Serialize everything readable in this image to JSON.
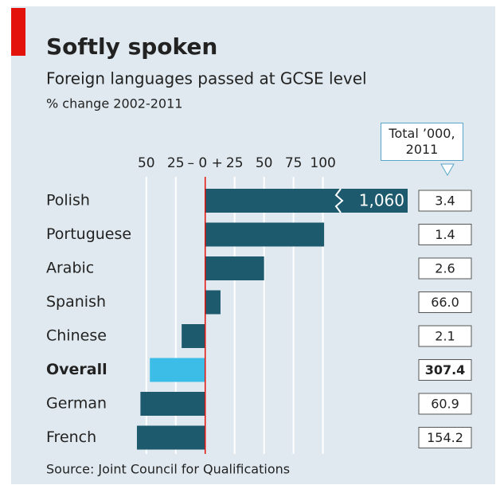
{
  "chart_data": {
    "type": "bar",
    "title": "Softly spoken",
    "subtitle": "Foreign languages passed at GCSE level",
    "axis_label": "% change 2002-2011",
    "source": "Source: Joint Council for Qualifications",
    "categories": [
      "Polish",
      "Portuguese",
      "Arabic",
      "Spanish",
      "Chinese",
      "Overall",
      "German",
      "French"
    ],
    "values": [
      1060,
      101,
      50,
      13,
      -20,
      -47,
      -55,
      -58
    ],
    "value_labels": [
      "1,060",
      null,
      null,
      null,
      null,
      null,
      null,
      null
    ],
    "color": "#1d5a6e",
    "colors": [
      "#1d5a6e",
      "#1d5a6e",
      "#1d5a6e",
      "#1d5a6e",
      "#1d5a6e",
      "#3bbde8",
      "#1d5a6e",
      "#1d5a6e"
    ],
    "xlim": [
      -60,
      105
    ],
    "xticks": [
      {
        "value": -50,
        "label": "50"
      },
      {
        "value": -25,
        "label": "25"
      },
      {
        "value": 0,
        "label": "– 0 +"
      },
      25,
      50,
      75,
      100
    ],
    "grid": true,
    "totals": {
      "name": "Total ’000, 2011",
      "values": [
        3.4,
        1.4,
        2.6,
        66,
        2.1,
        307.4,
        60.9,
        154.2
      ],
      "value_labels": [
        "3.4",
        "1.4",
        "2.6",
        "66.0",
        "2.1",
        "307.4",
        "60.9",
        "154.2"
      ]
    }
  }
}
